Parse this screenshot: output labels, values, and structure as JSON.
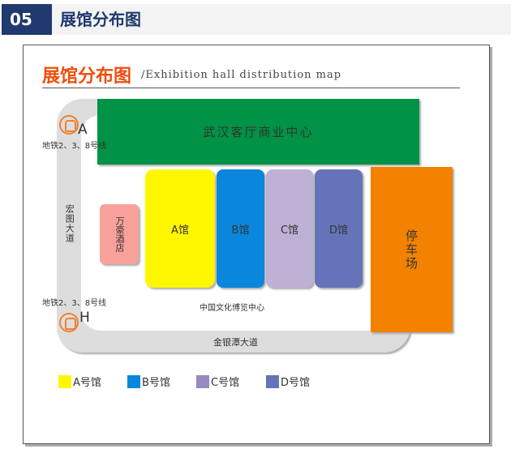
{
  "header": {
    "number": "05",
    "title": "展馆分布图"
  },
  "map": {
    "title": "展馆分布图",
    "subtitle": "/Exhibition hall distribution map",
    "green_block": "武汉客厅商业中心",
    "parking": "停车场",
    "hotel": "万豪酒店",
    "halls": [
      {
        "label": "A馆",
        "color": "#fff700"
      },
      {
        "label": "B馆",
        "color": "#0a86dc"
      },
      {
        "label": "C馆",
        "color": "#bfb1d6"
      },
      {
        "label": "D馆",
        "color": "#6574b8"
      }
    ],
    "center": "中国文化博览中心",
    "road_left": "宏图大道",
    "road_bottom": "金银潭大道",
    "metro_top": {
      "letter": "A",
      "label": "地铁2、3、8号线"
    },
    "metro_bottom": {
      "letter": "H",
      "label": "地铁2、3、8号线"
    },
    "colors": {
      "green": "#009245",
      "orange": "#f28200",
      "hotel": "#f8a09a"
    }
  },
  "legend": [
    {
      "label": "A号馆",
      "color": "#fff700"
    },
    {
      "label": "B号馆",
      "color": "#0a86dc"
    },
    {
      "label": "C号馆",
      "color": "#9a88c0"
    },
    {
      "label": "D号馆",
      "color": "#6574b8"
    }
  ]
}
